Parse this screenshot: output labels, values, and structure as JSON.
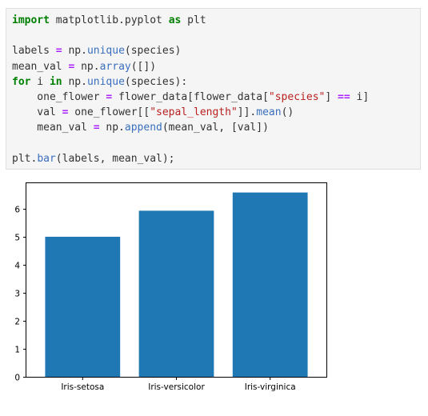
{
  "code_cell": {
    "lines": [
      [
        {
          "t": "import",
          "c": "kw"
        },
        {
          "t": " matplotlib.pyplot ",
          "c": ""
        },
        {
          "t": "as",
          "c": "kw"
        },
        {
          "t": " plt",
          "c": ""
        }
      ],
      [],
      [
        {
          "t": "labels ",
          "c": ""
        },
        {
          "t": "=",
          "c": "op"
        },
        {
          "t": " np.",
          "c": ""
        },
        {
          "t": "unique",
          "c": "fn"
        },
        {
          "t": "(species)",
          "c": ""
        }
      ],
      [
        {
          "t": "mean_val ",
          "c": ""
        },
        {
          "t": "=",
          "c": "op"
        },
        {
          "t": " np.",
          "c": ""
        },
        {
          "t": "array",
          "c": "fn"
        },
        {
          "t": "([])",
          "c": ""
        }
      ],
      [
        {
          "t": "for",
          "c": "kw"
        },
        {
          "t": " i ",
          "c": ""
        },
        {
          "t": "in",
          "c": "kw"
        },
        {
          "t": " np.",
          "c": ""
        },
        {
          "t": "unique",
          "c": "fn"
        },
        {
          "t": "(species):",
          "c": ""
        }
      ],
      [
        {
          "t": "    one_flower ",
          "c": ""
        },
        {
          "t": "=",
          "c": "op"
        },
        {
          "t": " flower_data[flower_data[",
          "c": ""
        },
        {
          "t": "\"species\"",
          "c": "str"
        },
        {
          "t": "] ",
          "c": ""
        },
        {
          "t": "==",
          "c": "op"
        },
        {
          "t": " i]",
          "c": ""
        }
      ],
      [
        {
          "t": "    val ",
          "c": ""
        },
        {
          "t": "=",
          "c": "op"
        },
        {
          "t": " one_flower[[",
          "c": ""
        },
        {
          "t": "\"sepal_length\"",
          "c": "str"
        },
        {
          "t": "]].",
          "c": ""
        },
        {
          "t": "mean",
          "c": "fn"
        },
        {
          "t": "()",
          "c": ""
        }
      ],
      [
        {
          "t": "    mean_val ",
          "c": ""
        },
        {
          "t": "=",
          "c": "op"
        },
        {
          "t": " np.",
          "c": ""
        },
        {
          "t": "append",
          "c": "fn"
        },
        {
          "t": "(mean_val, [val])",
          "c": ""
        }
      ],
      [],
      [
        {
          "t": "plt.",
          "c": ""
        },
        {
          "t": "bar",
          "c": "fn"
        },
        {
          "t": "(labels, mean_val);",
          "c": ""
        }
      ]
    ]
  },
  "colors": {
    "bar": "#1f77b4",
    "axes": "#000000",
    "code_background": "#f5f5f5"
  },
  "chart_data": {
    "type": "bar",
    "categories": [
      "Iris-setosa",
      "Iris-versicolor",
      "Iris-virginica"
    ],
    "values": [
      5.006,
      5.936,
      6.588
    ],
    "title": "",
    "xlabel": "",
    "ylabel": "",
    "ylim": [
      0,
      6.92
    ],
    "yticks": [
      "0",
      "1",
      "2",
      "3",
      "4",
      "5",
      "6"
    ],
    "grid": false,
    "legend": false
  }
}
